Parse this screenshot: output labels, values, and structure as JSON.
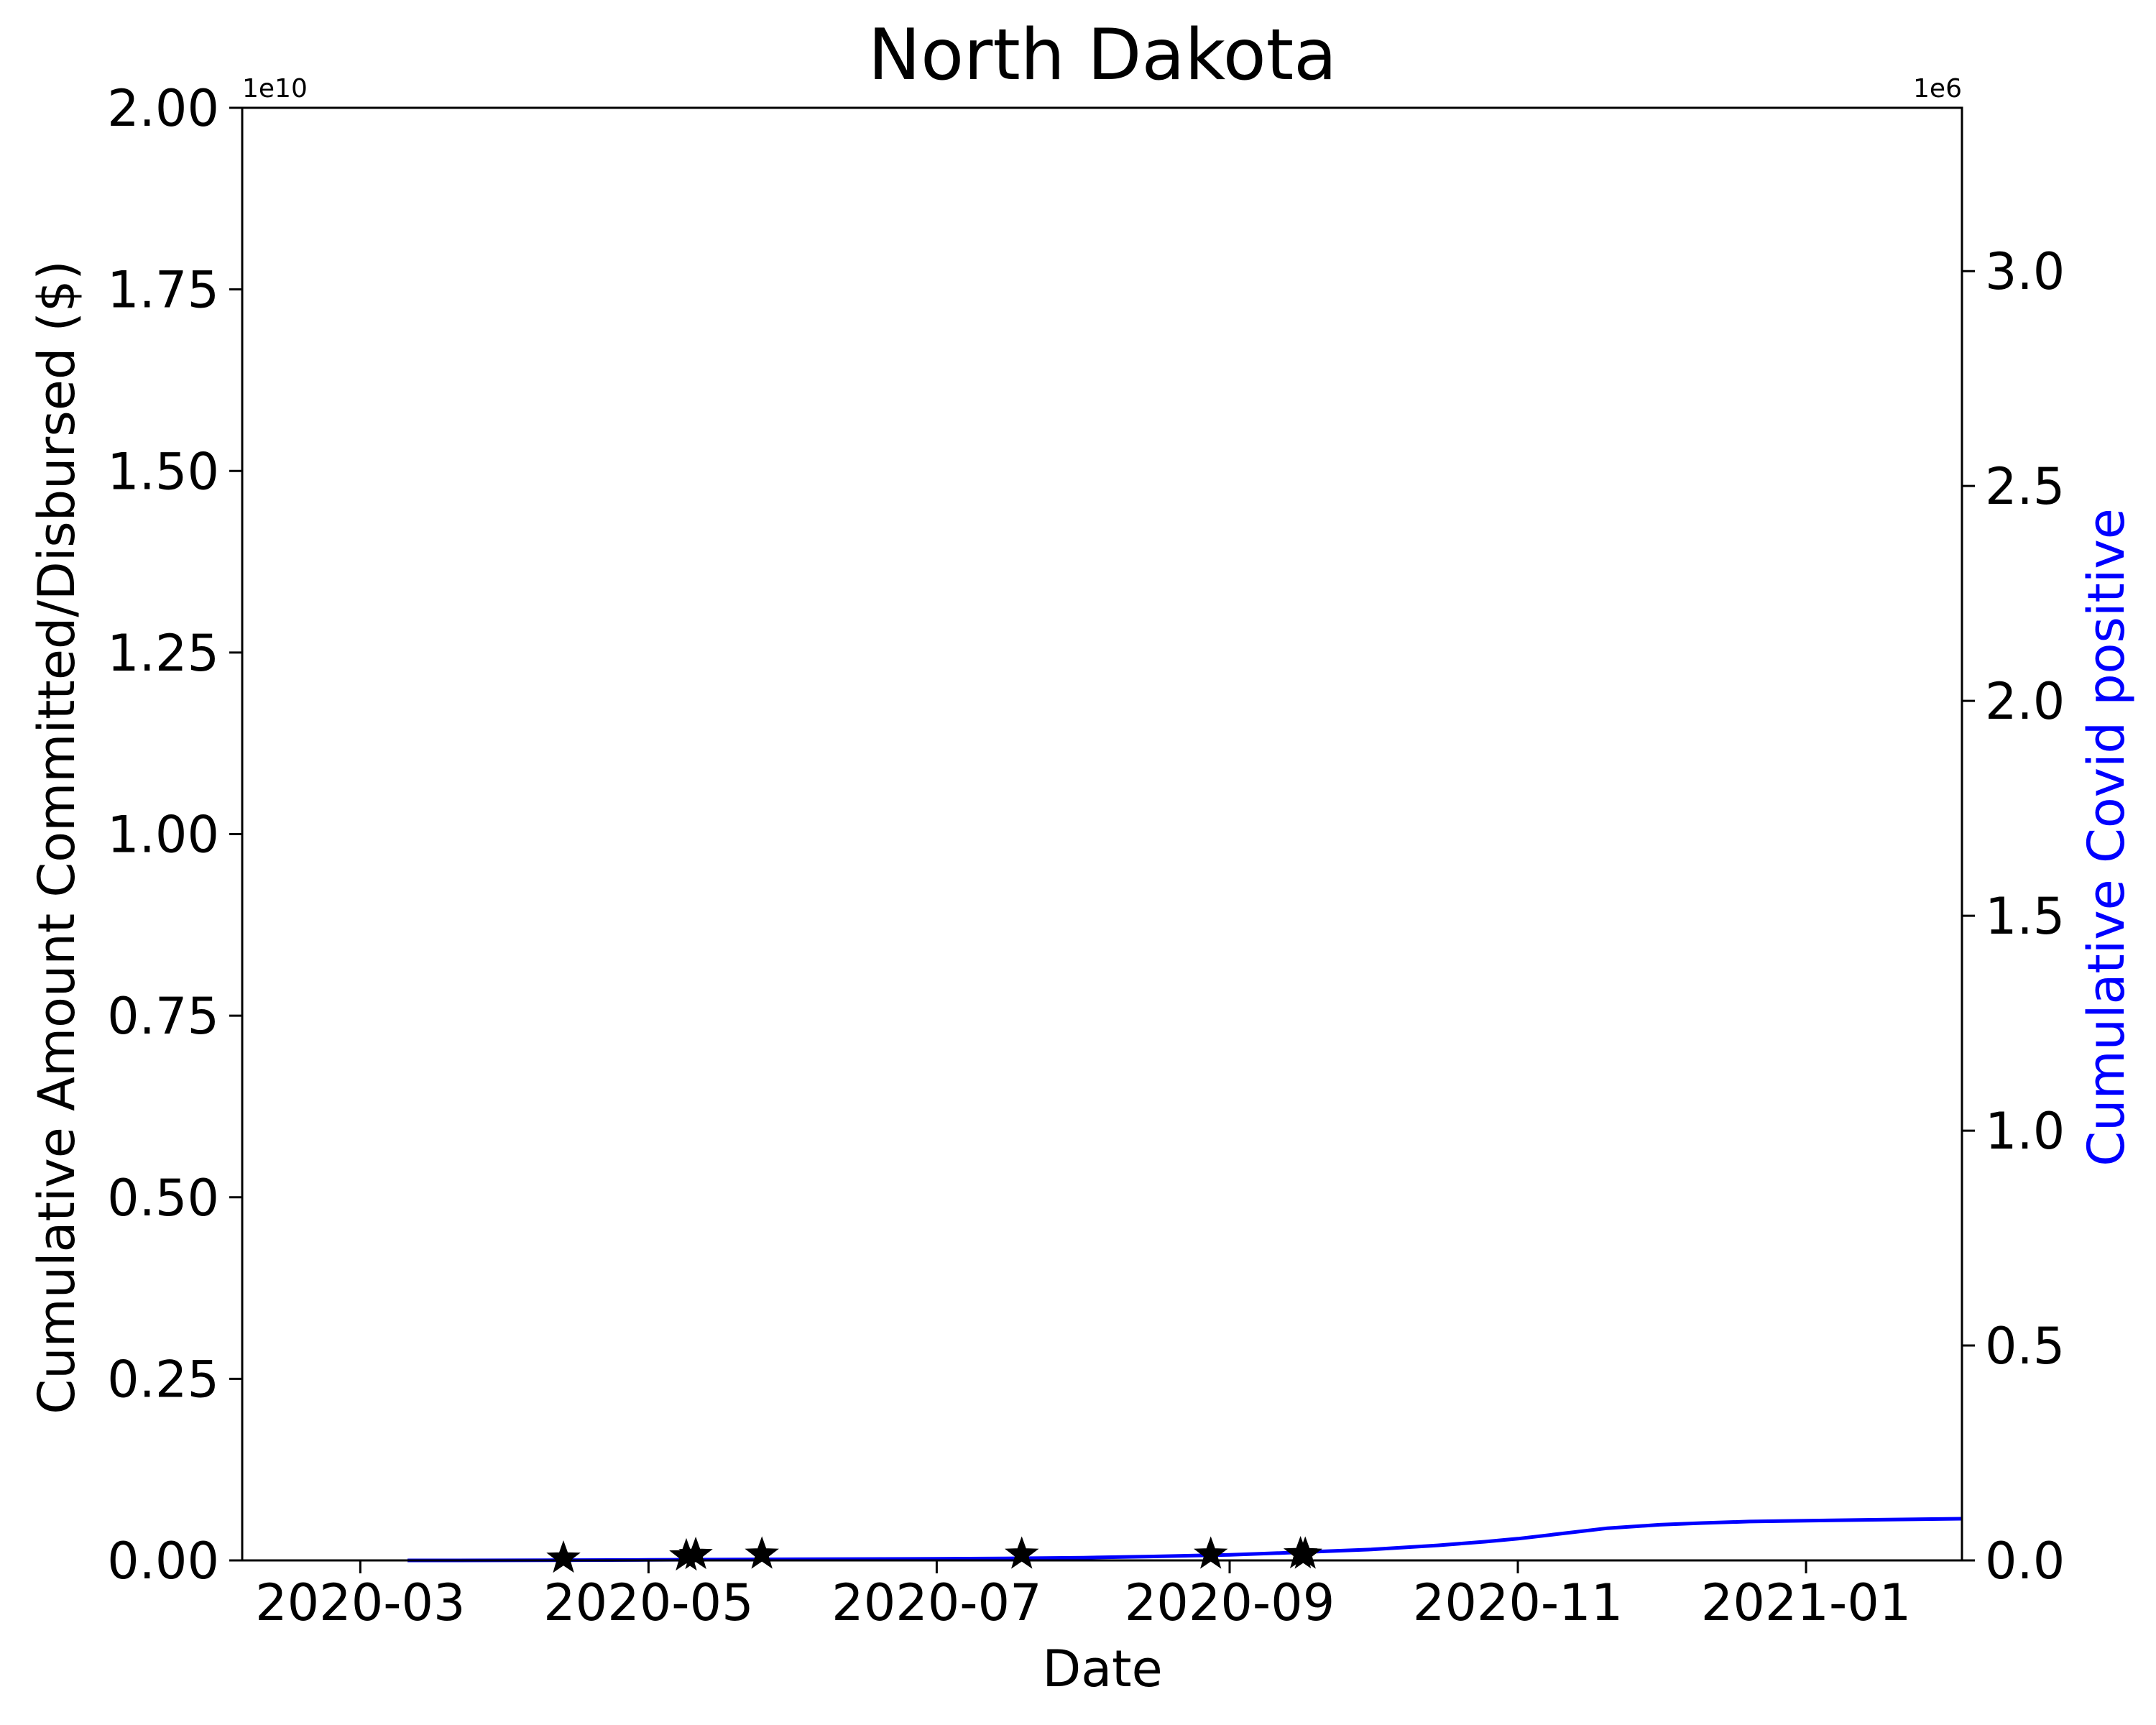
{
  "chart_data": {
    "type": "line",
    "title": "North Dakota",
    "xlabel": "Date",
    "ylabel": "Cumulative Amount Committed/Disbursed ($)",
    "y2label": "Cumulative Covid positive",
    "y_offset_label": "1e10",
    "y2_offset_label": "1e6",
    "xlim": [
      "2020-02-05",
      "2021-02-03"
    ],
    "ylim": [
      0,
      2.0
    ],
    "y2lim": [
      0,
      3.38
    ],
    "x_ticks": [
      {
        "date": "2020-03-01",
        "label": "2020-03"
      },
      {
        "date": "2020-05-01",
        "label": "2020-05"
      },
      {
        "date": "2020-07-01",
        "label": "2020-07"
      },
      {
        "date": "2020-09-01",
        "label": "2020-09"
      },
      {
        "date": "2020-11-01",
        "label": "2020-11"
      },
      {
        "date": "2021-01-01",
        "label": "2021-01"
      }
    ],
    "y_ticks": [
      {
        "value": 0.0,
        "label": "0.00"
      },
      {
        "value": 0.25,
        "label": "0.25"
      },
      {
        "value": 0.5,
        "label": "0.50"
      },
      {
        "value": 0.75,
        "label": "0.75"
      },
      {
        "value": 1.0,
        "label": "1.00"
      },
      {
        "value": 1.25,
        "label": "1.25"
      },
      {
        "value": 1.5,
        "label": "1.50"
      },
      {
        "value": 1.75,
        "label": "1.75"
      },
      {
        "value": 2.0,
        "label": "2.00"
      }
    ],
    "y2_ticks": [
      {
        "value": 0.0,
        "label": "0.0"
      },
      {
        "value": 0.5,
        "label": "0.5"
      },
      {
        "value": 1.0,
        "label": "1.0"
      },
      {
        "value": 1.5,
        "label": "1.5"
      },
      {
        "value": 2.0,
        "label": "2.0"
      },
      {
        "value": 2.5,
        "label": "2.5"
      },
      {
        "value": 3.0,
        "label": "3.0"
      }
    ],
    "series": [
      {
        "type": "scatter",
        "marker": "star",
        "color": "#000000",
        "axis": "left",
        "x": [
          "2020-04-13",
          "2020-05-09",
          "2020-05-11",
          "2020-05-25",
          "2020-07-19",
          "2020-08-28",
          "2020-09-16",
          "2020-09-17"
        ],
        "y": [
          0.003,
          0.006,
          0.008,
          0.0085,
          0.0085,
          0.0085,
          0.009,
          0.0085
        ]
      },
      {
        "type": "line",
        "color": "#0000ff",
        "axis": "right",
        "x": [
          "2020-03-11",
          "2020-04-01",
          "2020-05-01",
          "2020-06-01",
          "2020-07-01",
          "2020-07-15",
          "2020-08-01",
          "2020-08-15",
          "2020-09-01",
          "2020-09-15",
          "2020-10-01",
          "2020-10-15",
          "2020-10-25",
          "2020-11-01",
          "2020-11-10",
          "2020-11-20",
          "2020-12-01",
          "2020-12-10",
          "2020-12-20",
          "2021-01-01",
          "2021-01-15",
          "2021-02-03"
        ],
        "y": [
          0.0,
          0.0002,
          0.0012,
          0.0026,
          0.0036,
          0.0045,
          0.0063,
          0.009,
          0.0128,
          0.0185,
          0.0255,
          0.035,
          0.0435,
          0.0505,
          0.062,
          0.075,
          0.083,
          0.087,
          0.0905,
          0.0925,
          0.0945,
          0.097
        ]
      }
    ]
  }
}
